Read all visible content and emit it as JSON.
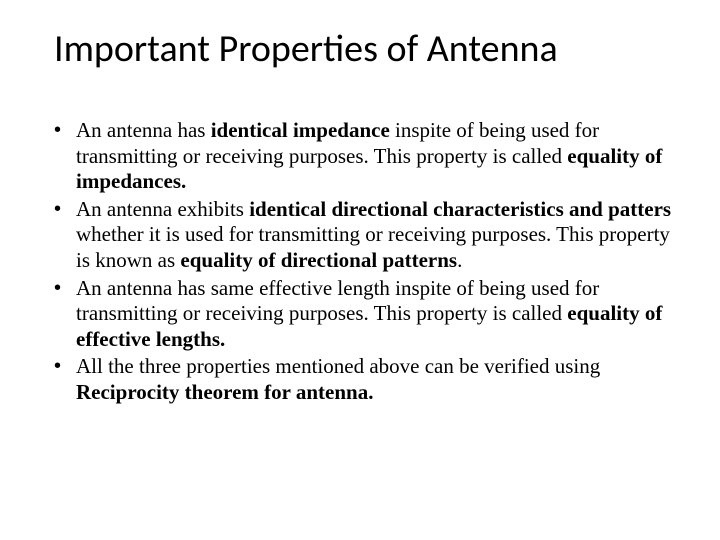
{
  "slide": {
    "title": "Important Properties of Antenna",
    "title_style": {
      "font_family": "Calibri, Arial, sans-serif",
      "font_size_pt": 29,
      "font_weight": 400,
      "color": "#000000"
    },
    "body_style": {
      "font_family": "Times New Roman, Times, serif",
      "font_size_pt": 16,
      "line_height": 1.22,
      "color": "#000000",
      "bullet_char": "•"
    },
    "background_color": "#ffffff",
    "bullets": [
      {
        "runs": [
          {
            "t": " An antenna has ",
            "b": false
          },
          {
            "t": "identical impedance ",
            "b": true
          },
          {
            "t": "inspite of being used for transmitting or receiving purposes. This property is called ",
            "b": false
          },
          {
            "t": "equality of impedances.",
            "b": true
          }
        ]
      },
      {
        "runs": [
          {
            "t": " An antenna exhibits ",
            "b": false
          },
          {
            "t": "identical directional characteristics and patters ",
            "b": true
          },
          {
            "t": "whether it is used for transmitting or receiving purposes. This property is known as ",
            "b": false
          },
          {
            "t": "equality of directional patterns",
            "b": true
          },
          {
            "t": ".",
            "b": false
          }
        ]
      },
      {
        "runs": [
          {
            "t": " An antenna has same effective length inspite of being used for transmitting or receiving purposes. This property is called ",
            "b": false
          },
          {
            "t": "equality of effective lengths.",
            "b": true
          }
        ]
      },
      {
        "runs": [
          {
            "t": "All the three properties mentioned above can be verified using ",
            "b": false
          },
          {
            "t": "Reciprocity theorem for antenna.",
            "b": true
          }
        ]
      }
    ]
  }
}
